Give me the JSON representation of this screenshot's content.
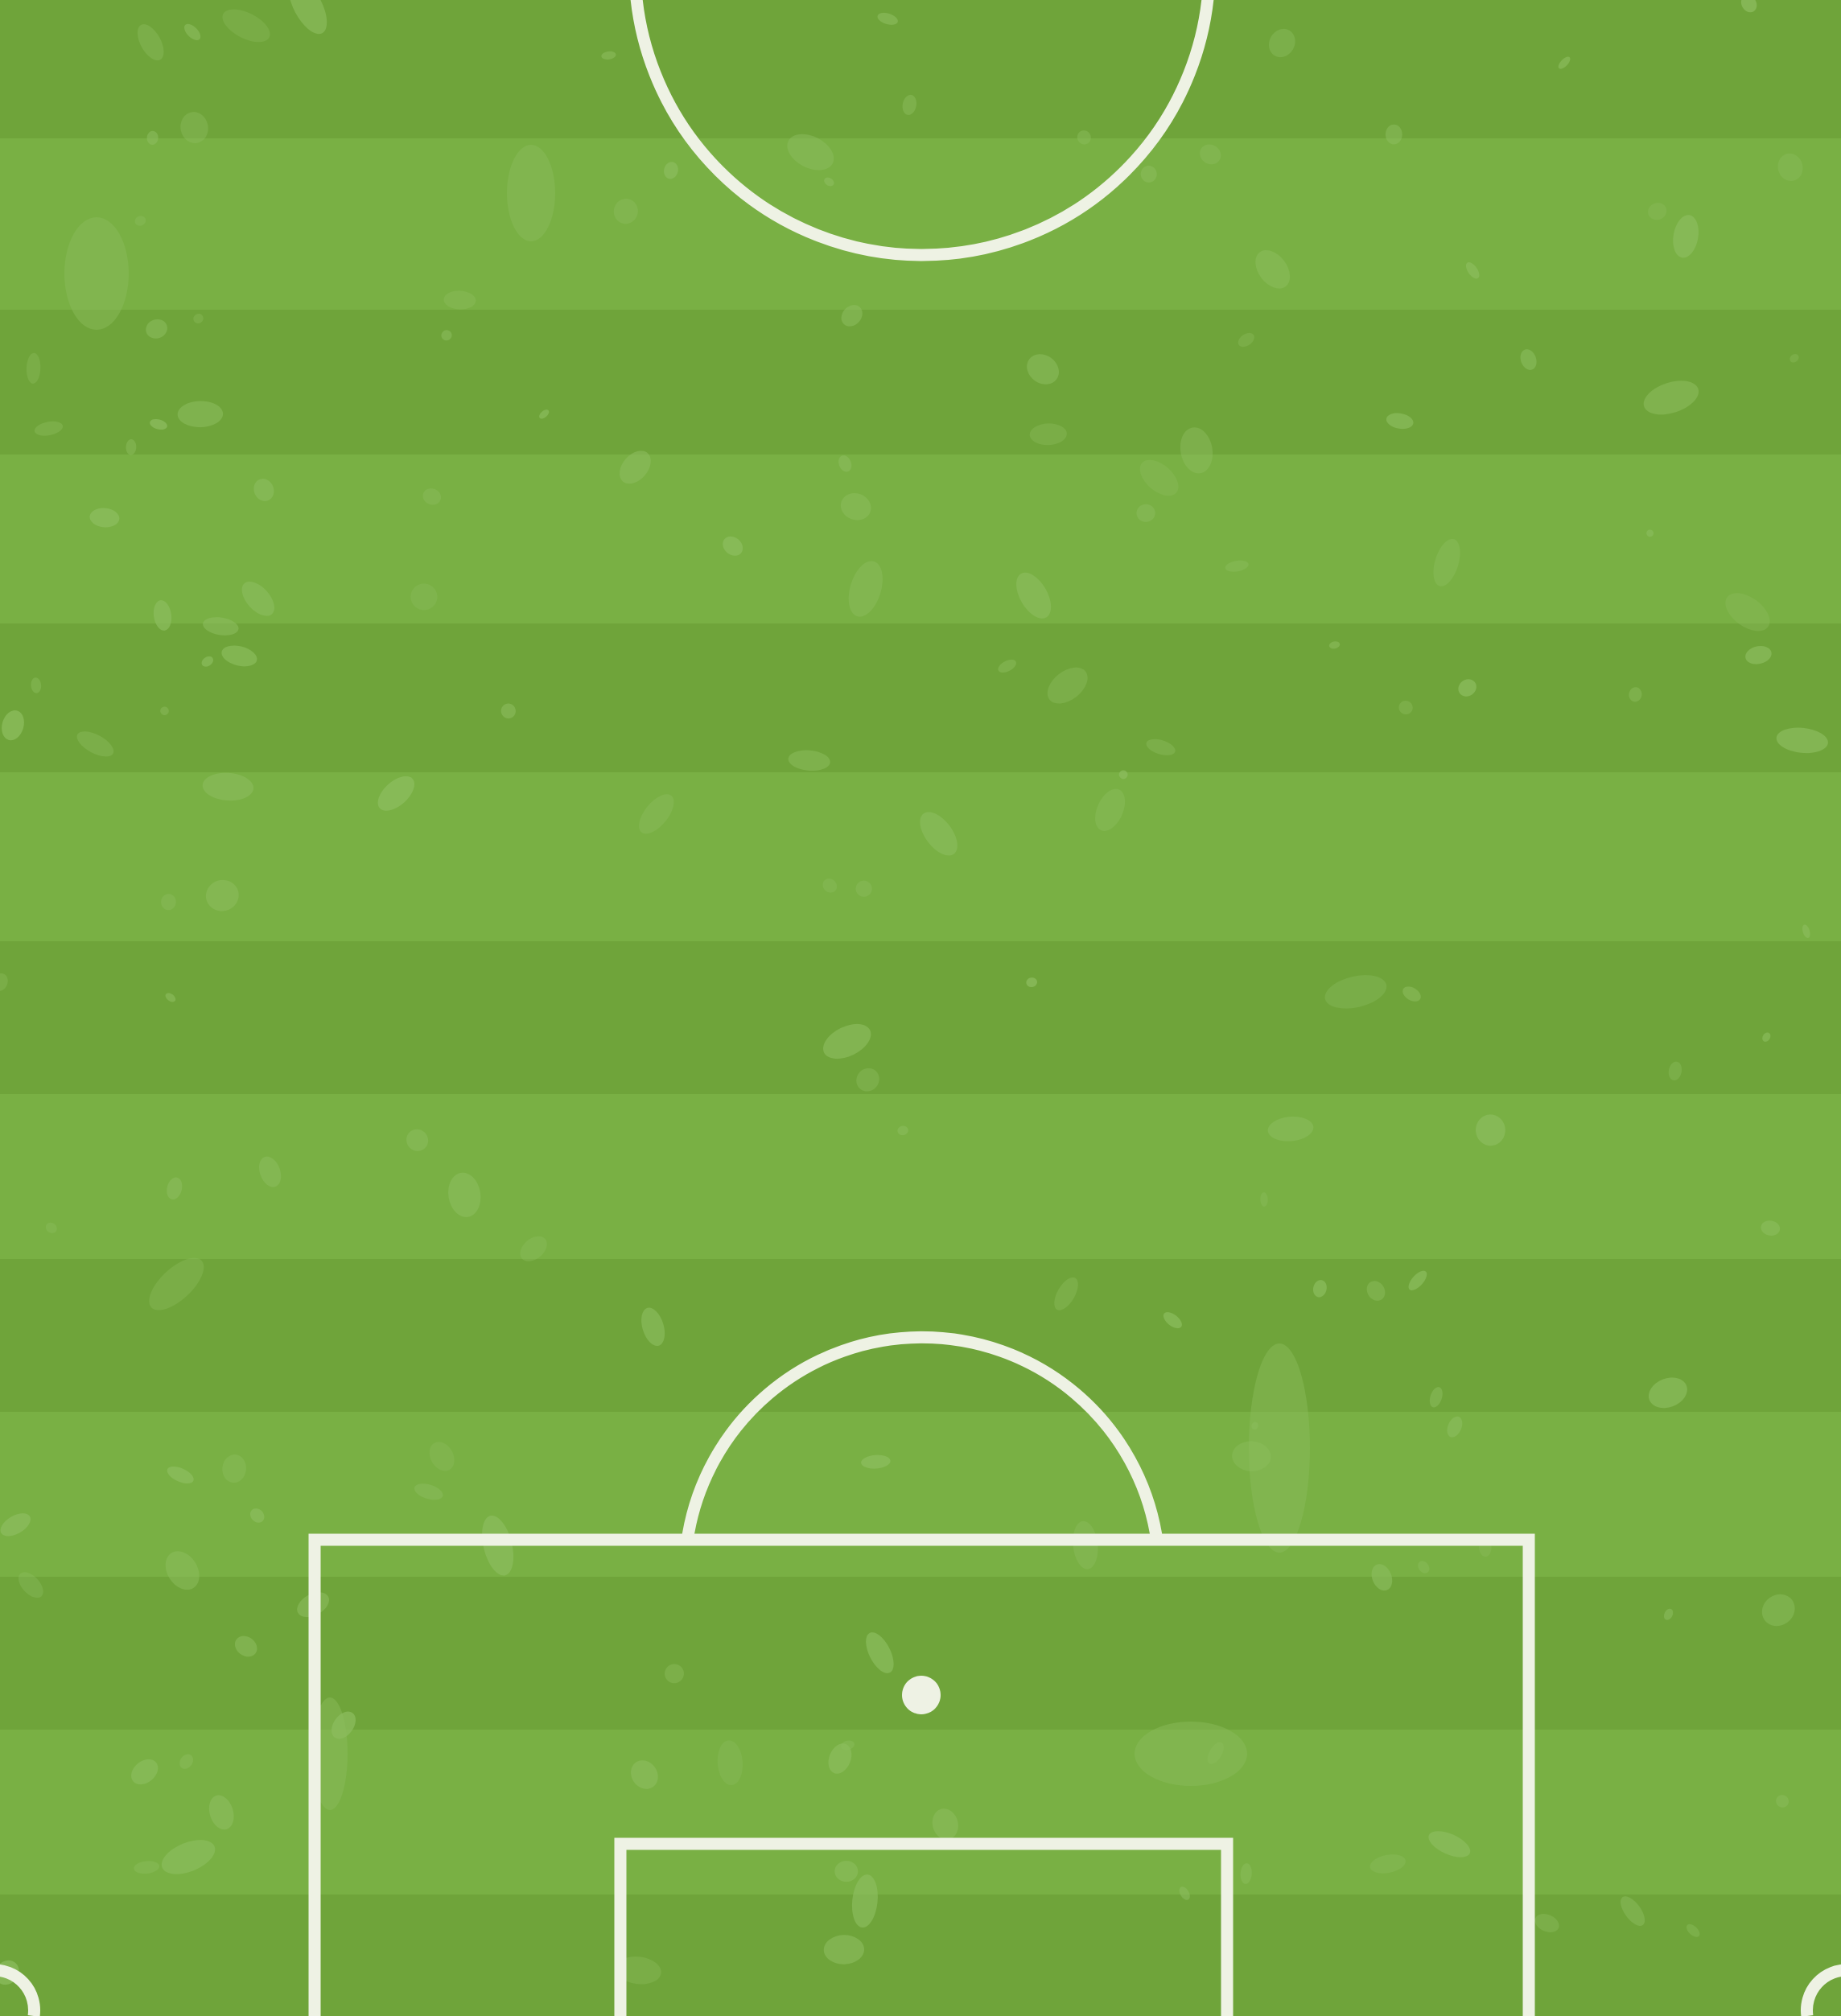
{
  "scene": {
    "type": "football-pitch-half",
    "view": "top-down",
    "mowing_stripes": "horizontal",
    "colors": {
      "grass_dark": "#6fa43a",
      "grass_light": "#79b044",
      "line": "#eef2e4",
      "texture_patch": "#8cbd5e"
    },
    "markings": [
      "centre-circle",
      "penalty-box",
      "penalty-arc",
      "penalty-spot",
      "goal-box",
      "corner-arc-left",
      "corner-arc-right"
    ]
  }
}
